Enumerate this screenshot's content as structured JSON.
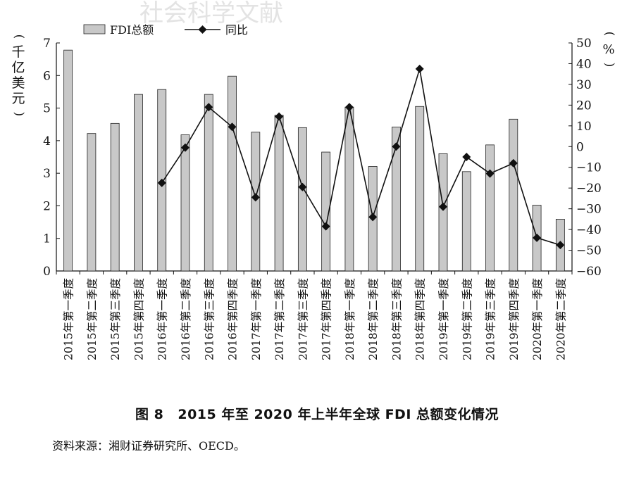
{
  "watermark": "社会科学文献",
  "figure": {
    "number": "图 8",
    "title": "2015 年至 2020 年上半年全球 FDI 总额变化情况",
    "source": "资料来源：湘财证券研究所、OECD。"
  },
  "chart_data": {
    "type": "bar",
    "categories": [
      "2015年第一季度",
      "2015年第二季度",
      "2015年第三季度",
      "2015年第四季度",
      "2016年第一季度",
      "2016年第二季度",
      "2016年第三季度",
      "2016年第四季度",
      "2017年第一季度",
      "2017年第二季度",
      "2017年第三季度",
      "2017年第四季度",
      "2018年第一季度",
      "2018年第二季度",
      "2018年第三季度",
      "2018年第四季度",
      "2019年第一季度",
      "2019年第二季度",
      "2019年第三季度",
      "2019年第四季度",
      "2020年第一季度",
      "2020年第二季度"
    ],
    "series": [
      {
        "name": "FDI总额",
        "type": "bar",
        "axis": "left",
        "color": "#c8c8c8",
        "values": [
          6.78,
          4.22,
          4.53,
          5.42,
          5.57,
          4.18,
          5.42,
          5.98,
          4.26,
          4.78,
          4.4,
          3.65,
          5.03,
          3.21,
          4.42,
          5.05,
          3.6,
          3.05,
          3.87,
          4.66,
          2.02,
          1.59
        ]
      },
      {
        "name": "同比",
        "type": "line",
        "axis": "right",
        "color": "#111111",
        "values": [
          null,
          null,
          null,
          null,
          -17.5,
          -0.5,
          19,
          9.5,
          -24.5,
          14.5,
          -19.5,
          -38.5,
          19,
          -34,
          0,
          37.5,
          -29,
          -5,
          -13,
          -8,
          -44,
          -47.5
        ]
      }
    ],
    "ylabel_left": "千亿美元",
    "ylabel_right": "%",
    "ylim_left": [
      0,
      7
    ],
    "yticks_left": [
      0,
      1,
      2,
      3,
      4,
      5,
      6,
      7
    ],
    "ylim_right": [
      -60,
      50
    ],
    "yticks_right": [
      50,
      40,
      30,
      20,
      10,
      0,
      -10,
      -20,
      -30,
      -40,
      -50,
      -60
    ],
    "legend_position": "top-left",
    "grid": false
  }
}
